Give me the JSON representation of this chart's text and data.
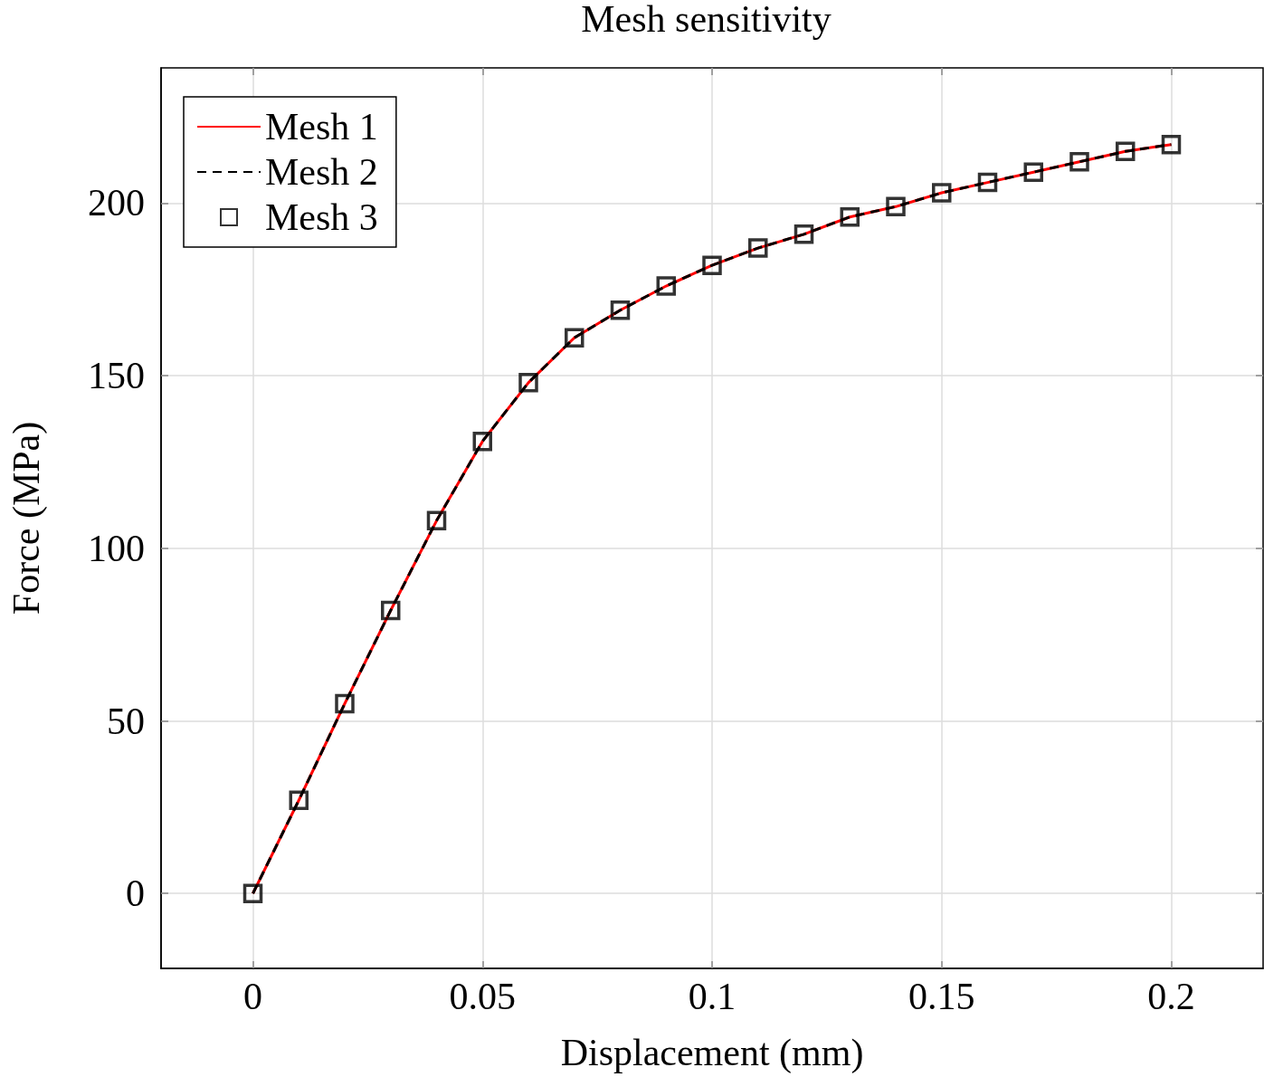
{
  "chart_data": {
    "type": "line",
    "title": "Mesh sensitivity",
    "xlabel": "Displacement (mm)",
    "ylabel": "Force (MPa)",
    "x": [
      0,
      0.01,
      0.02,
      0.03,
      0.04,
      0.05,
      0.06,
      0.07,
      0.08,
      0.09,
      0.1,
      0.11,
      0.12,
      0.13,
      0.14,
      0.15,
      0.16,
      0.17,
      0.18,
      0.19,
      0.2
    ],
    "series": [
      {
        "name": "Mesh 1",
        "color": "#ff0000",
        "line_style": "solid",
        "marker": "none",
        "values": [
          0,
          27,
          55,
          82,
          108,
          131,
          148,
          161,
          169,
          176,
          182,
          187,
          191,
          196,
          199,
          203,
          206,
          209,
          212,
          215,
          217
        ]
      },
      {
        "name": "Mesh 2",
        "color": "#000000",
        "line_style": "dashed",
        "marker": "none",
        "values": [
          0,
          27,
          55,
          82,
          108,
          131,
          148,
          161,
          169,
          176,
          182,
          187,
          191,
          196,
          199,
          203,
          206,
          209,
          212,
          215,
          217
        ]
      },
      {
        "name": "Mesh 3",
        "type": "scatter",
        "color": "#000000",
        "marker": "square",
        "values": [
          0,
          27,
          55,
          82,
          108,
          131,
          148,
          161,
          169,
          176,
          182,
          187,
          191,
          196,
          199,
          203,
          206,
          209,
          212,
          215,
          217
        ]
      }
    ],
    "xlim": [
      -0.02,
      0.22
    ],
    "ylim": [
      -21.7,
      239.2
    ],
    "xticks": [
      0,
      0.05,
      0.1,
      0.15,
      0.2
    ],
    "yticks": [
      0,
      50,
      100,
      150,
      200
    ],
    "grid": true,
    "legend": "top left"
  }
}
